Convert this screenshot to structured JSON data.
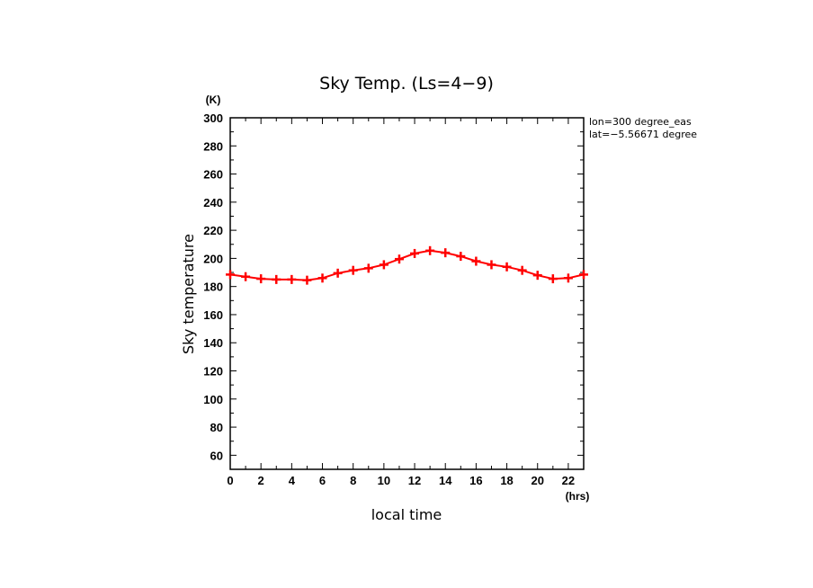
{
  "chart_data": {
    "type": "line",
    "title": "Sky Temp. (Ls=4−9)",
    "xlabel": "local time",
    "ylabel": "Sky temperature",
    "x_unit": "(hrs)",
    "y_unit": "(K)",
    "xlim": [
      0,
      23
    ],
    "ylim": [
      50,
      300
    ],
    "x_ticks": [
      "0",
      "2",
      "4",
      "6",
      "8",
      "10",
      "12",
      "14",
      "16",
      "18",
      "20",
      "22"
    ],
    "y_ticks": [
      "60",
      "80",
      "100",
      "120",
      "140",
      "160",
      "180",
      "200",
      "220",
      "240",
      "260",
      "280",
      "300"
    ],
    "annotations": [
      "lon=300 degree_eas",
      "lat=−5.56671 degree"
    ],
    "series_color": "#ff0000",
    "marker": "plus",
    "grid": false,
    "series": [
      {
        "x": [
          0,
          1,
          2,
          3,
          4,
          5,
          6,
          7,
          8,
          9,
          10,
          11,
          12,
          13,
          14,
          15,
          16,
          17,
          18,
          19,
          20,
          21,
          22,
          23
        ],
        "values": [
          188.5,
          187,
          185.5,
          185,
          185,
          184.5,
          186,
          189.5,
          191.5,
          193,
          195.5,
          199.5,
          203.5,
          205.5,
          204,
          201.5,
          198,
          195.5,
          194,
          191.5,
          188,
          185.5,
          186,
          188.5
        ]
      }
    ]
  }
}
